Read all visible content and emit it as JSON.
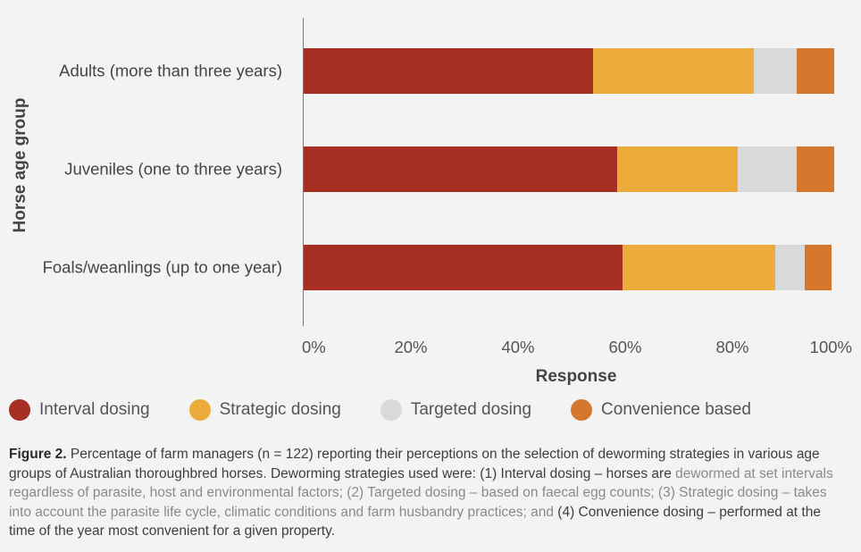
{
  "chart_data": {
    "type": "bar",
    "orientation": "horizontal",
    "stacked": true,
    "categories": [
      "Adults (more than three years)",
      "Juveniles (one to three years)",
      "Foals/weanlings (up to one year)"
    ],
    "series": [
      {
        "name": "Interval dosing",
        "color": "#a62e22",
        "values": [
          54,
          58.5,
          59.5
        ]
      },
      {
        "name": "Strategic dosing",
        "color": "#ebac3c",
        "values": [
          30,
          22.5,
          28.5
        ]
      },
      {
        "name": "Targeted dosing",
        "color": "#d9d9d9",
        "values": [
          8,
          11,
          5.5
        ]
      },
      {
        "name": "Convenience based",
        "color": "#d6772e",
        "values": [
          7,
          7,
          5
        ]
      }
    ],
    "xlabel": "Response",
    "ylabel": "Horse age group",
    "xlim": [
      0,
      100
    ],
    "xticks": [
      "0%",
      "20%",
      "40%",
      "60%",
      "80%",
      "100%"
    ],
    "grid": false,
    "legend_position": "bottom"
  },
  "caption": {
    "label": "Figure 2.",
    "text_part1": "Percentage of farm managers (n = 122) reporting their perceptions on the selection of deworming strategies in various age groups of Australian thoroughbred horses. Deworming strategies used were: (1) Interval dosing – horses are",
    "text_part2": "dewormed at set intervals regardless of parasite, host and environmental factors; (2) Targeted dosing – based on faecal egg counts; (3) Strategic dosing – takes into account the parasite life cycle, climatic conditions and farm husbandry practices; and",
    "text_part3": "(4) Convenience dosing – performed at the time of the year most convenient for a given property."
  }
}
